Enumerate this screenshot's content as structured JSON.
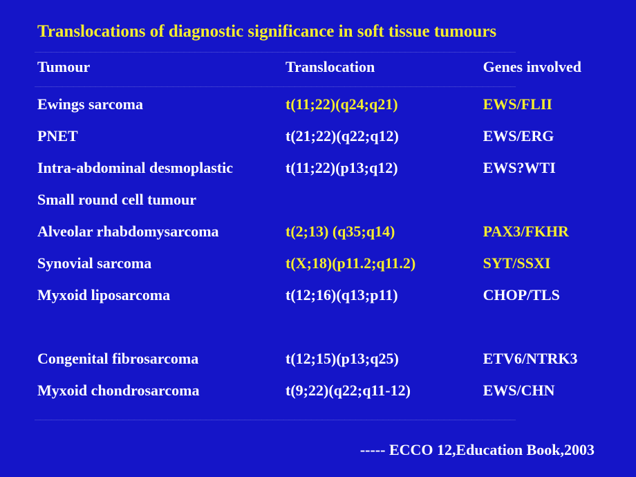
{
  "slide": {
    "title": "Translocations of diagnostic significance in soft tissue tumours",
    "title_color": "#f5ed2e",
    "background_color": "#1515c8",
    "text_color": "#ffffff",
    "accent_color": "#f5ed2e",
    "font_family": "Times New Roman",
    "title_fontsize": 25,
    "body_fontsize": 22,
    "divider_line": "_______________________________________________________________________________________",
    "columns": {
      "c1": "Tumour",
      "c2": "Translocation",
      "c3": "Genes involved",
      "widths_pct": [
        44,
        35,
        21
      ]
    },
    "rows": [
      {
        "tumour": "Ewings sarcoma",
        "translocation": "t(11;22)(q24;q21)",
        "genes": "EWS/FLII",
        "highlight": true
      },
      {
        "tumour": "PNET",
        "translocation": "t(21;22)(q22;q12)",
        "genes": "EWS/ERG",
        "highlight": false
      },
      {
        "tumour": "Intra-abdominal desmoplastic",
        "translocation": "t(11;22)(p13;q12)",
        "genes": "EWS?WTI",
        "highlight": false
      },
      {
        "tumour": "Small round cell tumour",
        "translocation": "",
        "genes": "",
        "highlight": false
      },
      {
        "tumour": "Alveolar rhabdomysarcoma",
        "translocation": "t(2;13) (q35;q14)",
        "genes": "PAX3/FKHR",
        "highlight": true
      },
      {
        "tumour": "Synovial sarcoma",
        "translocation": "t(X;18)(p11.2;q11.2)",
        "genes": "SYT/SSXI",
        "highlight": true
      },
      {
        "tumour": "Myxoid liposarcoma",
        "translocation": "t(12;16)(q13;p11)",
        "genes": "CHOP/TLS",
        "highlight": false
      },
      {
        "tumour": "",
        "translocation": "",
        "genes": "",
        "highlight": false
      },
      {
        "tumour": "Congenital fibrosarcoma",
        "translocation": "t(12;15)(p13;q25)",
        "genes": "ETV6/NTRK3",
        "highlight": false
      },
      {
        "tumour": "Myxoid chondrosarcoma",
        "translocation": "t(9;22)(q22;q11-12)",
        "genes": "EWS/CHN",
        "highlight": false
      }
    ],
    "source": "----- ECCO 12,Education Book,2003"
  }
}
